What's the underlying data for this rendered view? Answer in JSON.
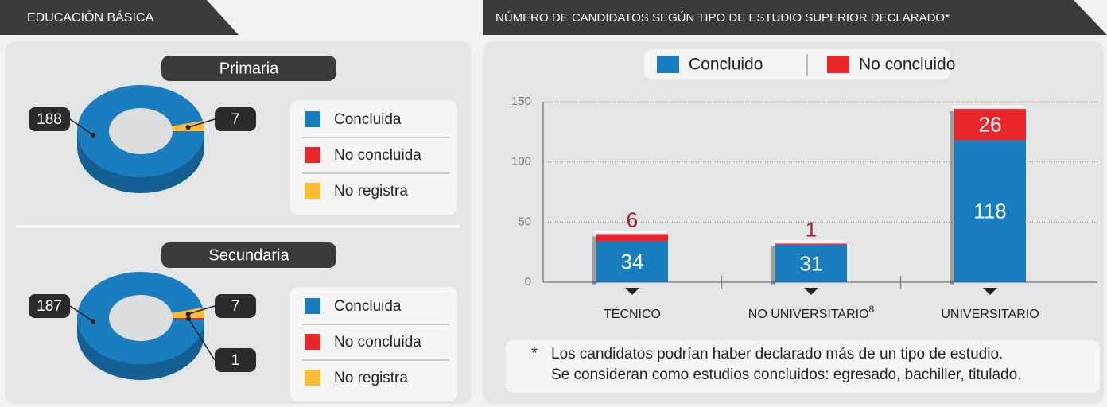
{
  "left_panel": {
    "title": "EDUCACIÓN BÁSICA"
  },
  "right_panel": {
    "title": "NÚMERO DE CANDIDATOS SEGÚN TIPO DE ESTUDIO SUPERIOR DECLARADO*",
    "footnote_mark": "*",
    "footnote": [
      "Los candidatos podrían haber declarado más de un tipo de estudio.",
      "Se consideran como estudios concluidos: egresado, bachiller, titulado."
    ]
  },
  "chart_data": [
    {
      "type": "donut",
      "title": "Primaria",
      "categories": [
        "Concluida",
        "No concluida",
        "No registra"
      ],
      "values": [
        188,
        0,
        7
      ],
      "colors": [
        "#1a7dc0",
        "#e8262b",
        "#fbbb33"
      ]
    },
    {
      "type": "donut",
      "title": "Secundaria",
      "categories": [
        "Concluida",
        "No concluida",
        "No registra"
      ],
      "values": [
        187,
        1,
        7
      ],
      "colors": [
        "#1a7dc0",
        "#e8262b",
        "#fbbb33"
      ]
    },
    {
      "type": "bar",
      "stacked": true,
      "categories": [
        "TÉCNICO",
        "NO UNIVERSITARIO",
        "UNIVERSITARIO"
      ],
      "category_superscripts": [
        null,
        "8",
        null
      ],
      "series": [
        {
          "name": "Concluido",
          "color": "#1a7dc0",
          "values": [
            34,
            31,
            118
          ]
        },
        {
          "name": "No concluido",
          "color": "#e8262b",
          "values": [
            6,
            1,
            26
          ]
        }
      ],
      "ylim": [
        0,
        150
      ],
      "yticks": [
        0,
        50,
        100,
        150
      ],
      "grid": true
    }
  ]
}
